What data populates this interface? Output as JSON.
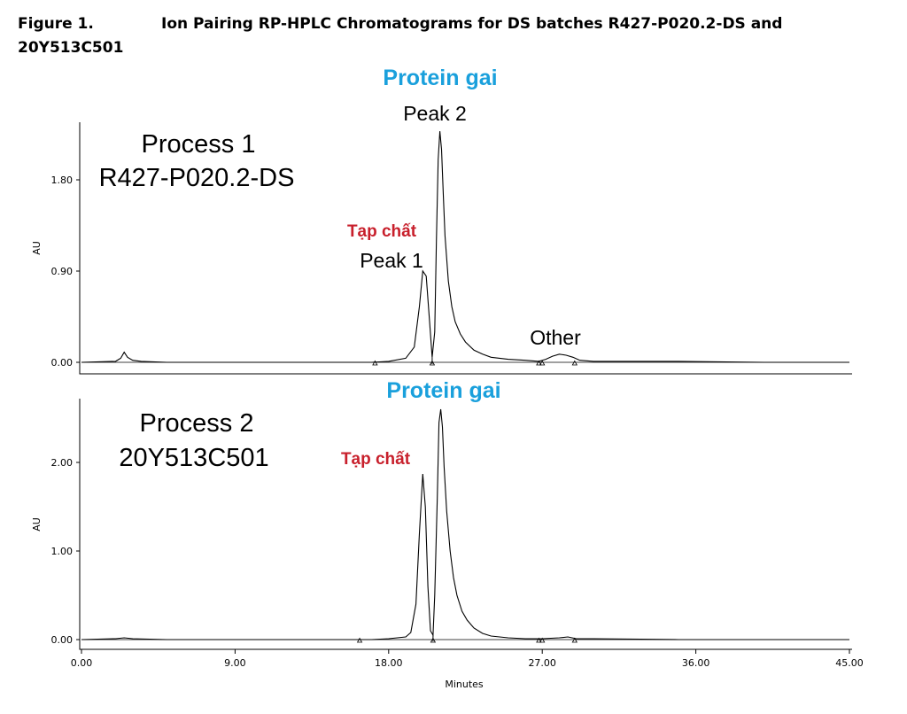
{
  "caption": {
    "figure_number": "Figure 1.",
    "title_line1": "Ion Pairing RP-HPLC Chromatograms for DS batches R427-P020.2-DS and",
    "title_line2": "20Y513C501"
  },
  "chart_data": [
    {
      "type": "line",
      "xlabel": "",
      "ylabel": "AU",
      "xlim": [
        0,
        45
      ],
      "ylim": [
        -0.08,
        2.0
      ],
      "yticks": [
        "0.00",
        "0.90",
        "1.80"
      ],
      "series": [
        {
          "x": [
            0,
            2.0,
            2.3,
            2.5,
            2.7,
            3.0,
            3.5,
            5,
            10,
            15,
            17,
            18,
            19,
            19.5,
            19.8,
            20.0,
            20.2,
            20.4,
            20.55,
            20.7,
            20.8,
            20.9,
            21.0,
            21.1,
            21.2,
            21.3,
            21.5,
            21.7,
            21.9,
            22.2,
            22.5,
            23.0,
            23.5,
            24,
            25,
            26,
            26.8,
            27.2,
            27.6,
            28.0,
            28.4,
            28.8,
            29.2,
            30,
            35,
            40,
            45
          ],
          "y": [
            0.0,
            0.01,
            0.04,
            0.1,
            0.05,
            0.02,
            0.01,
            0.0,
            0.0,
            0.0,
            0.0,
            0.01,
            0.04,
            0.15,
            0.55,
            0.9,
            0.85,
            0.4,
            0.05,
            0.3,
            1.2,
            2.0,
            2.28,
            2.1,
            1.65,
            1.25,
            0.8,
            0.55,
            0.4,
            0.28,
            0.2,
            0.12,
            0.08,
            0.05,
            0.03,
            0.02,
            0.01,
            0.03,
            0.06,
            0.08,
            0.07,
            0.05,
            0.02,
            0.01,
            0.01,
            0.0,
            0.0
          ]
        }
      ],
      "annotations": {
        "process": "Process 1",
        "batch": "R427-P020.2-DS",
        "main_label": "Protein gai",
        "peak2": "Peak 2",
        "impurity": "Tạp chất",
        "peak1": "Peak 1",
        "other": "Other"
      }
    },
    {
      "type": "line",
      "xlabel": "Minutes",
      "ylabel": "AU",
      "xlim": [
        0,
        45
      ],
      "ylim": [
        -0.1,
        2.6
      ],
      "xticks": [
        "0.00",
        "9.00",
        "18.00",
        "27.00",
        "36.00",
        "45.00"
      ],
      "yticks": [
        "0.00",
        "1.00",
        "2.00"
      ],
      "series": [
        {
          "x": [
            0,
            2.0,
            2.5,
            3.0,
            5,
            10,
            15,
            17,
            18,
            19,
            19.3,
            19.6,
            19.8,
            20.0,
            20.15,
            20.3,
            20.45,
            20.6,
            20.7,
            20.85,
            20.95,
            21.05,
            21.15,
            21.25,
            21.4,
            21.6,
            21.8,
            22.0,
            22.3,
            22.6,
            23.0,
            23.5,
            24,
            25,
            26,
            27,
            28,
            28.5,
            29,
            30,
            35,
            40,
            45
          ],
          "y": [
            0.0,
            0.01,
            0.02,
            0.01,
            0.0,
            0.0,
            0.0,
            0.0,
            0.01,
            0.03,
            0.08,
            0.4,
            1.2,
            1.87,
            1.5,
            0.6,
            0.1,
            0.05,
            0.5,
            1.6,
            2.45,
            2.6,
            2.4,
            1.95,
            1.45,
            1.0,
            0.7,
            0.5,
            0.32,
            0.22,
            0.13,
            0.07,
            0.04,
            0.02,
            0.01,
            0.01,
            0.02,
            0.03,
            0.01,
            0.01,
            0.0,
            0.0,
            0.0
          ]
        }
      ],
      "annotations": {
        "process": "Process 2",
        "batch": "20Y513C501",
        "main_label": "Protein gai",
        "impurity": "Tạp chất"
      }
    }
  ]
}
